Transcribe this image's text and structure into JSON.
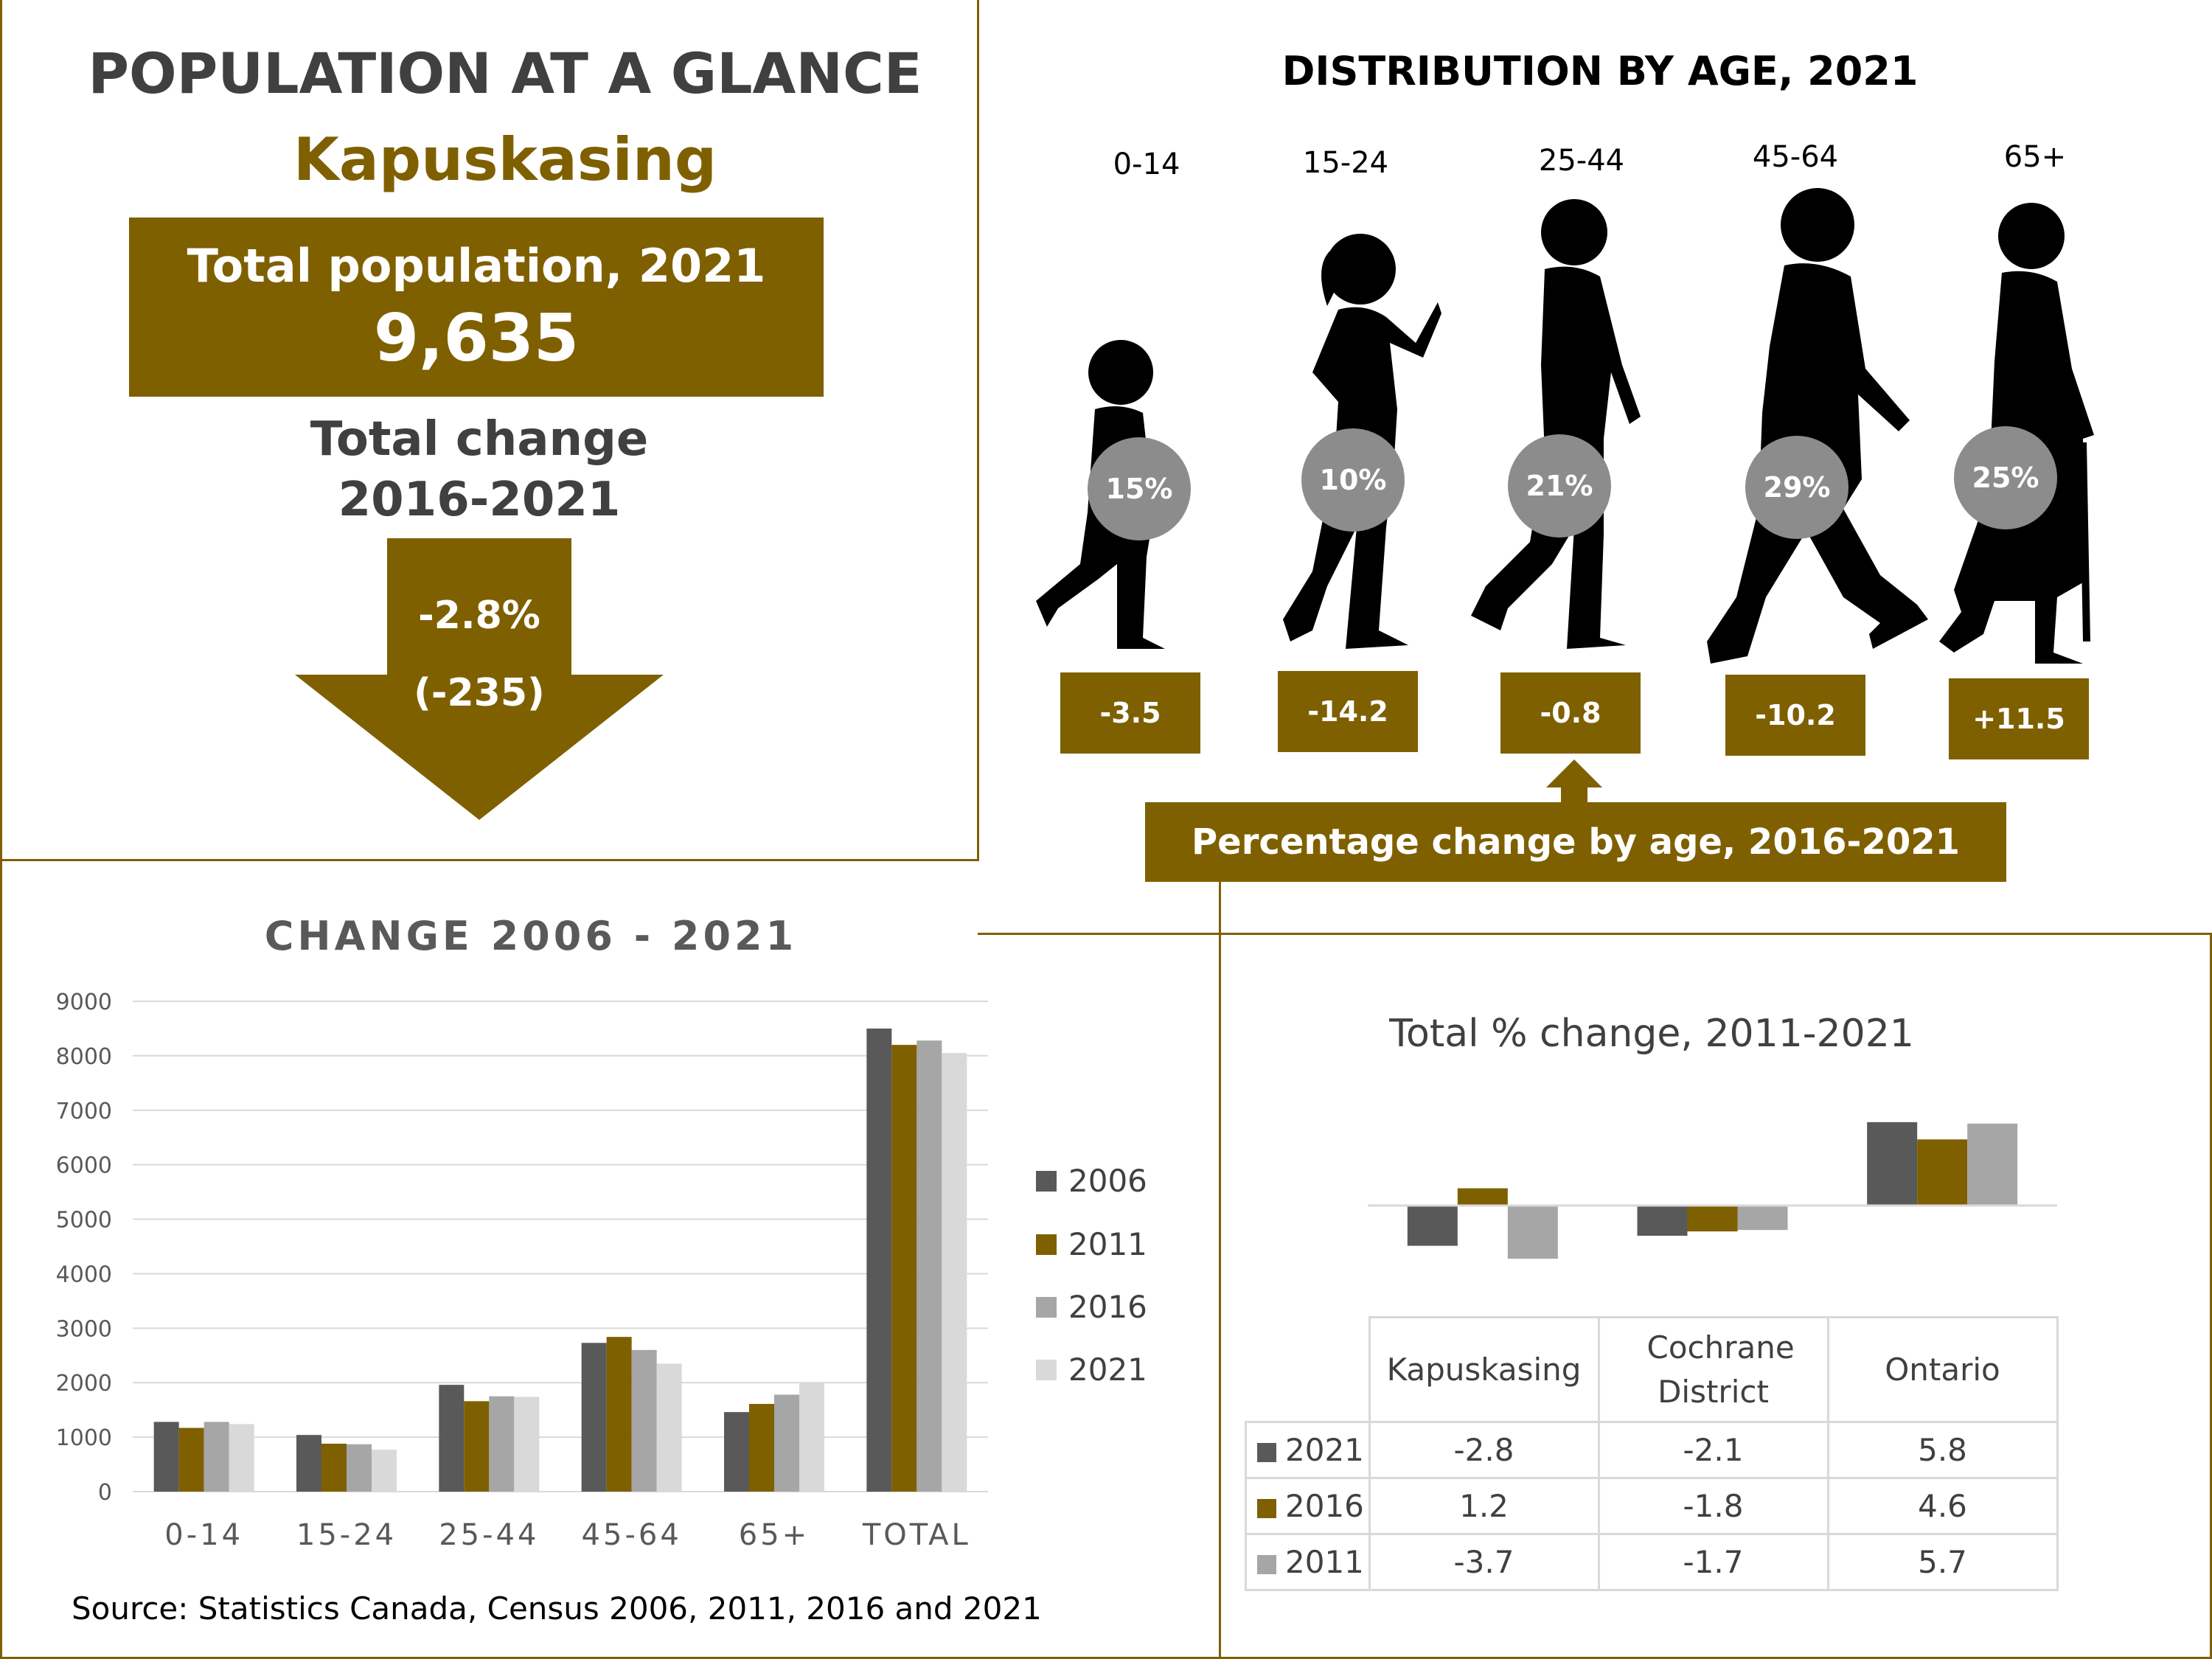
{
  "glance": {
    "title": "POPULATION AT A GLANCE",
    "place": "Kapuskasing",
    "total_label": "Total population, 2021",
    "total_value": "9,635",
    "change_label_1": "Total change",
    "change_label_2": "2016-2021",
    "change_pct": "-2.8%",
    "change_abs": "(-235)"
  },
  "colors": {
    "gold": "#7f6000",
    "s2006": "#595959",
    "s2011": "#7f6000",
    "s2016": "#a6a6a6",
    "s2021": "#d9d9d9",
    "circle": "#8c8c8c"
  },
  "distribution": {
    "title": "DISTRIBUTION BY AGE, 2021",
    "groups": [
      {
        "age": "0-14",
        "share": "15%",
        "change": "-3.5",
        "icon": "child-silhouette-icon"
      },
      {
        "age": "15-24",
        "share": "10%",
        "change": "-14.2",
        "icon": "young-woman-silhouette-icon"
      },
      {
        "age": "25-44",
        "share": "21%",
        "change": "-0.8",
        "icon": "man-silhouette-icon"
      },
      {
        "age": "45-64",
        "share": "29%",
        "change": "-10.2",
        "icon": "middle-aged-man-silhouette-icon"
      },
      {
        "age": "65+",
        "share": "25%",
        "change": "+11.5",
        "icon": "senior-woman-with-cane-silhouette-icon"
      }
    ],
    "change_caption": "Percentage change by age, 2016-2021"
  },
  "chart_data": [
    {
      "type": "bar",
      "title": "CHANGE 2006 - 2021",
      "categories": [
        "0-14",
        "15-24",
        "25-44",
        "45-64",
        "65+",
        "TOTAL"
      ],
      "series": [
        {
          "name": "2006",
          "values": [
            1280,
            1040,
            1960,
            2730,
            1460,
            8500
          ]
        },
        {
          "name": "2011",
          "values": [
            1170,
            880,
            1660,
            2840,
            1610,
            8200
          ]
        },
        {
          "name": "2016",
          "values": [
            1280,
            870,
            1750,
            2600,
            1780,
            8280
          ]
        },
        {
          "name": "2021",
          "values": [
            1240,
            770,
            1740,
            2350,
            1990,
            8050
          ]
        }
      ],
      "ylim": [
        0,
        9000
      ],
      "yticks": [
        0,
        1000,
        2000,
        3000,
        4000,
        5000,
        6000,
        7000,
        8000,
        9000
      ],
      "grid": true,
      "legend": "right",
      "xlabel": "",
      "ylabel": ""
    },
    {
      "type": "bar",
      "title": "Total % change, 2011-2021",
      "categories": [
        "Kapuskasing",
        "Cochrane District",
        "Ontario"
      ],
      "series": [
        {
          "name": "2021",
          "values": [
            -2.8,
            -2.1,
            5.8
          ]
        },
        {
          "name": "2016",
          "values": [
            1.2,
            -1.8,
            4.6
          ]
        },
        {
          "name": "2011",
          "values": [
            -3.7,
            -1.7,
            5.7
          ]
        }
      ],
      "data_table": true,
      "xlabel": "",
      "ylabel": ""
    }
  ],
  "source": "Source: Statistics Canada, Census 2006, 2011, 2016 and 2021"
}
